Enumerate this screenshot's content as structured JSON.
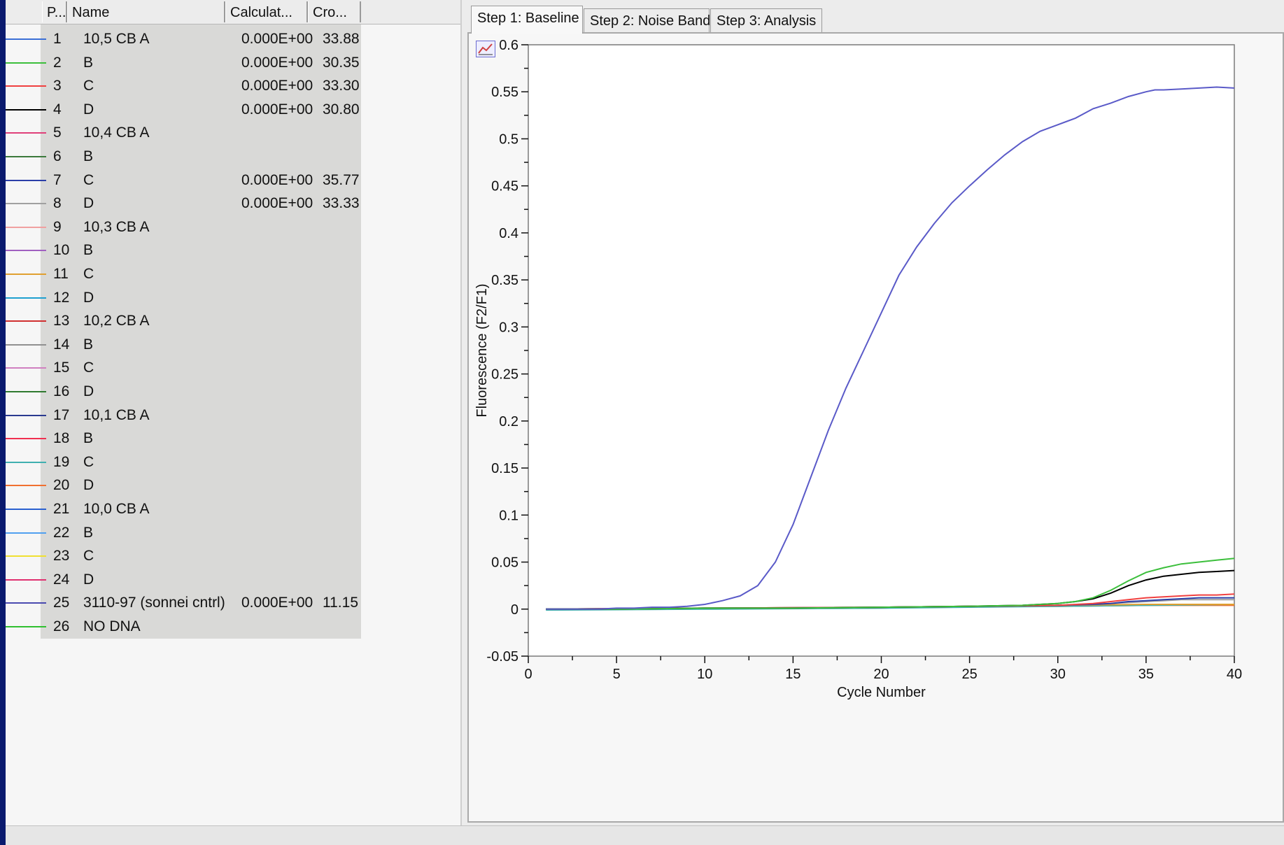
{
  "table": {
    "columns": [
      "P...",
      "Name",
      "Calculat...",
      "Cro..."
    ],
    "rows": [
      {
        "pos": "1",
        "name": "10,5 CB A",
        "calc": "0.000E+00",
        "cro": "33.88",
        "color": "#3b6fd6"
      },
      {
        "pos": "2",
        "name": "B",
        "calc": "0.000E+00",
        "cro": "30.35",
        "color": "#3cbf3c"
      },
      {
        "pos": "3",
        "name": "C",
        "calc": "0.000E+00",
        "cro": "33.30",
        "color": "#f04040"
      },
      {
        "pos": "4",
        "name": "D",
        "calc": "0.000E+00",
        "cro": "30.80",
        "color": "#000000"
      },
      {
        "pos": "5",
        "name": "10,4 CB A",
        "calc": "",
        "cro": "",
        "color": "#e0407a"
      },
      {
        "pos": "6",
        "name": "B",
        "calc": "",
        "cro": "",
        "color": "#3c7a3c"
      },
      {
        "pos": "7",
        "name": "C",
        "calc": "0.000E+00",
        "cro": "35.77",
        "color": "#2b3fa8"
      },
      {
        "pos": "8",
        "name": "D",
        "calc": "0.000E+00",
        "cro": "33.33",
        "color": "#a0a0a0"
      },
      {
        "pos": "9",
        "name": "10,3 CB A",
        "calc": "",
        "cro": "",
        "color": "#f0a0a0"
      },
      {
        "pos": "10",
        "name": "B",
        "calc": "",
        "cro": "",
        "color": "#a060c0"
      },
      {
        "pos": "11",
        "name": "C",
        "calc": "",
        "cro": "",
        "color": "#e0a030"
      },
      {
        "pos": "12",
        "name": "D",
        "calc": "",
        "cro": "",
        "color": "#1fa0d0"
      },
      {
        "pos": "13",
        "name": "10,2 CB A",
        "calc": "",
        "cro": "",
        "color": "#d03030"
      },
      {
        "pos": "14",
        "name": "B",
        "calc": "",
        "cro": "",
        "color": "#909090"
      },
      {
        "pos": "15",
        "name": "C",
        "calc": "",
        "cro": "",
        "color": "#d080c0"
      },
      {
        "pos": "16",
        "name": "D",
        "calc": "",
        "cro": "",
        "color": "#2f7a2f"
      },
      {
        "pos": "17",
        "name": "10,1 CB A",
        "calc": "",
        "cro": "",
        "color": "#2a3a90"
      },
      {
        "pos": "18",
        "name": "B",
        "calc": "",
        "cro": "",
        "color": "#f03050"
      },
      {
        "pos": "19",
        "name": "C",
        "calc": "",
        "cro": "",
        "color": "#40b0b0"
      },
      {
        "pos": "20",
        "name": "D",
        "calc": "",
        "cro": "",
        "color": "#f07030"
      },
      {
        "pos": "21",
        "name": "10,0 CB A",
        "calc": "",
        "cro": "",
        "color": "#2a60d0"
      },
      {
        "pos": "22",
        "name": "B",
        "calc": "",
        "cro": "",
        "color": "#50a0f0"
      },
      {
        "pos": "23",
        "name": "C",
        "calc": "",
        "cro": "",
        "color": "#f0e030"
      },
      {
        "pos": "24",
        "name": "D",
        "calc": "",
        "cro": "",
        "color": "#e03070"
      },
      {
        "pos": "25",
        "name": "3110-97 (sonnei cntrl)",
        "calc": "0.000E+00",
        "cro": "11.15",
        "color": "#4a4ab0"
      },
      {
        "pos": "26",
        "name": "NO DNA",
        "calc": "",
        "cro": "",
        "color": "#30c030"
      }
    ]
  },
  "tabs": [
    {
      "label": "Step 1: Baseline",
      "active": true
    },
    {
      "label": "Step 2: Noise Band",
      "active": false
    },
    {
      "label": "Step 3: Analysis",
      "active": false
    }
  ],
  "chart_data": {
    "type": "line",
    "xlabel": "Cycle Number",
    "ylabel": "Fluorescence (F2/F1)",
    "xlim": [
      0,
      40
    ],
    "ylim": [
      -0.05,
      0.6
    ],
    "xticks": [
      0,
      5,
      10,
      15,
      20,
      25,
      30,
      35,
      40
    ],
    "yticks": [
      -0.05,
      0,
      0.05,
      0.1,
      0.15,
      0.2,
      0.25,
      0.3,
      0.35,
      0.4,
      0.45,
      0.5,
      0.55,
      0.6
    ],
    "yticklabels": [
      "-0.05",
      "0",
      "0.05",
      "0.1",
      "0.15",
      "0.2",
      "0.25",
      "0.3",
      "0.35",
      "0.4",
      "0.45",
      "0.5",
      "0.55",
      "0.6"
    ],
    "grid": false,
    "series": [
      {
        "color": "#5a5ac8",
        "x": [
          1,
          2,
          3,
          4,
          5,
          6,
          7,
          8,
          9,
          10,
          11,
          12,
          13,
          14,
          15,
          16,
          17,
          18,
          19,
          20,
          21,
          22,
          23,
          24,
          25,
          26,
          27,
          28,
          29,
          30,
          31,
          32,
          33,
          34,
          35,
          35.5,
          36,
          37,
          38,
          39,
          40
        ],
        "y": [
          0,
          0,
          0,
          0,
          0.001,
          0.001,
          0.002,
          0.002,
          0.003,
          0.005,
          0.009,
          0.014,
          0.025,
          0.05,
          0.09,
          0.14,
          0.19,
          0.235,
          0.275,
          0.315,
          0.355,
          0.385,
          0.41,
          0.432,
          0.45,
          0.467,
          0.483,
          0.497,
          0.508,
          0.515,
          0.522,
          0.532,
          0.538,
          0.545,
          0.55,
          0.552,
          0.552,
          0.553,
          0.554,
          0.555,
          0.554
        ]
      },
      {
        "color": "#3cbf3c",
        "x": [
          1,
          5,
          10,
          15,
          20,
          25,
          28,
          29,
          30,
          31,
          32,
          33,
          34,
          35,
          36,
          37,
          38,
          39,
          40
        ],
        "y": [
          0,
          0,
          0.001,
          0.001,
          0.002,
          0.003,
          0.004,
          0.005,
          0.006,
          0.008,
          0.012,
          0.02,
          0.03,
          0.039,
          0.044,
          0.048,
          0.05,
          0.052,
          0.054
        ]
      },
      {
        "color": "#000000",
        "x": [
          1,
          5,
          10,
          15,
          20,
          25,
          28,
          29,
          30,
          31,
          32,
          33,
          34,
          35,
          36,
          37,
          38,
          39,
          40
        ],
        "y": [
          0,
          0,
          0.001,
          0.001,
          0.002,
          0.003,
          0.004,
          0.005,
          0.006,
          0.008,
          0.011,
          0.017,
          0.025,
          0.031,
          0.035,
          0.037,
          0.039,
          0.04,
          0.041
        ]
      },
      {
        "color": "#f04040",
        "x": [
          1,
          10,
          20,
          25,
          30,
          32,
          33,
          34,
          35,
          36,
          37,
          38,
          39,
          40
        ],
        "y": [
          0,
          0.001,
          0.002,
          0.003,
          0.004,
          0.006,
          0.008,
          0.01,
          0.012,
          0.013,
          0.014,
          0.015,
          0.015,
          0.016
        ]
      },
      {
        "color": "#2b3fa8",
        "x": [
          1,
          10,
          20,
          25,
          30,
          32,
          33,
          34,
          35,
          36,
          37,
          38,
          39,
          40
        ],
        "y": [
          0,
          0.001,
          0.002,
          0.003,
          0.004,
          0.005,
          0.006,
          0.008,
          0.009,
          0.01,
          0.011,
          0.012,
          0.012,
          0.012
        ]
      },
      {
        "color": "#a0a0a0",
        "x": [
          1,
          10,
          20,
          25,
          30,
          32,
          33,
          34,
          35,
          36,
          37,
          38,
          39,
          40
        ],
        "y": [
          0,
          0.001,
          0.002,
          0.003,
          0.004,
          0.005,
          0.006,
          0.007,
          0.008,
          0.009,
          0.01,
          0.01,
          0.01,
          0.01
        ]
      },
      {
        "color": "#e0a030",
        "x": [
          1,
          10,
          20,
          30,
          35,
          40
        ],
        "y": [
          0,
          0.001,
          0.002,
          0.004,
          0.005,
          0.005
        ]
      },
      {
        "color": "#40b0b0",
        "x": [
          1,
          10,
          20,
          30,
          35,
          40
        ],
        "y": [
          -0.001,
          0.0,
          0.001,
          0.003,
          0.004,
          0.005
        ]
      },
      {
        "color": "#f07030",
        "x": [
          1,
          10,
          20,
          30,
          35,
          40
        ],
        "y": [
          0,
          0.001,
          0.002,
          0.003,
          0.004,
          0.004
        ]
      }
    ]
  }
}
